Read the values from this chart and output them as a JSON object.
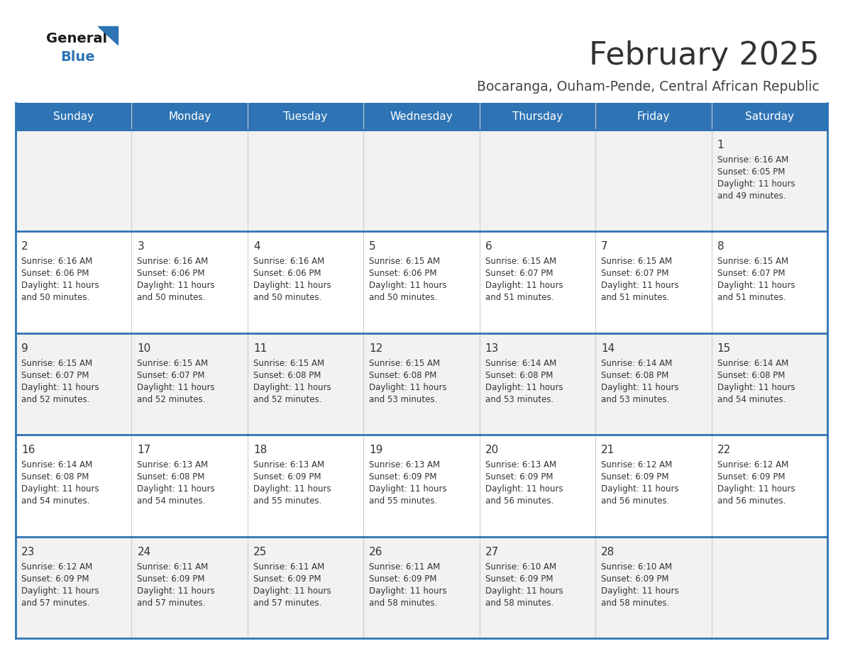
{
  "title": "February 2025",
  "subtitle": "Bocaranga, Ouham-Pende, Central African Republic",
  "header_bg_color": "#2E74B5",
  "header_text_color": "#FFFFFF",
  "cell_bg_even": "#F2F2F2",
  "cell_bg_odd": "#FFFFFF",
  "cell_text_color": "#333333",
  "day_number_color": "#333333",
  "border_color": "#2E74B5",
  "title_color": "#333333",
  "subtitle_color": "#444444",
  "weekdays": [
    "Sunday",
    "Monday",
    "Tuesday",
    "Wednesday",
    "Thursday",
    "Friday",
    "Saturday"
  ],
  "weeks": [
    [
      {
        "day": 0
      },
      {
        "day": 0
      },
      {
        "day": 0
      },
      {
        "day": 0
      },
      {
        "day": 0
      },
      {
        "day": 0
      },
      {
        "day": 1,
        "sunrise": "6:16 AM",
        "sunset": "6:05 PM",
        "daylight": "11 hours and 49 minutes."
      }
    ],
    [
      {
        "day": 2,
        "sunrise": "6:16 AM",
        "sunset": "6:06 PM",
        "daylight": "11 hours and 50 minutes."
      },
      {
        "day": 3,
        "sunrise": "6:16 AM",
        "sunset": "6:06 PM",
        "daylight": "11 hours and 50 minutes."
      },
      {
        "day": 4,
        "sunrise": "6:16 AM",
        "sunset": "6:06 PM",
        "daylight": "11 hours and 50 minutes."
      },
      {
        "day": 5,
        "sunrise": "6:15 AM",
        "sunset": "6:06 PM",
        "daylight": "11 hours and 50 minutes."
      },
      {
        "day": 6,
        "sunrise": "6:15 AM",
        "sunset": "6:07 PM",
        "daylight": "11 hours and 51 minutes."
      },
      {
        "day": 7,
        "sunrise": "6:15 AM",
        "sunset": "6:07 PM",
        "daylight": "11 hours and 51 minutes."
      },
      {
        "day": 8,
        "sunrise": "6:15 AM",
        "sunset": "6:07 PM",
        "daylight": "11 hours and 51 minutes."
      }
    ],
    [
      {
        "day": 9,
        "sunrise": "6:15 AM",
        "sunset": "6:07 PM",
        "daylight": "11 hours and 52 minutes."
      },
      {
        "day": 10,
        "sunrise": "6:15 AM",
        "sunset": "6:07 PM",
        "daylight": "11 hours and 52 minutes."
      },
      {
        "day": 11,
        "sunrise": "6:15 AM",
        "sunset": "6:08 PM",
        "daylight": "11 hours and 52 minutes."
      },
      {
        "day": 12,
        "sunrise": "6:15 AM",
        "sunset": "6:08 PM",
        "daylight": "11 hours and 53 minutes."
      },
      {
        "day": 13,
        "sunrise": "6:14 AM",
        "sunset": "6:08 PM",
        "daylight": "11 hours and 53 minutes."
      },
      {
        "day": 14,
        "sunrise": "6:14 AM",
        "sunset": "6:08 PM",
        "daylight": "11 hours and 53 minutes."
      },
      {
        "day": 15,
        "sunrise": "6:14 AM",
        "sunset": "6:08 PM",
        "daylight": "11 hours and 54 minutes."
      }
    ],
    [
      {
        "day": 16,
        "sunrise": "6:14 AM",
        "sunset": "6:08 PM",
        "daylight": "11 hours and 54 minutes."
      },
      {
        "day": 17,
        "sunrise": "6:13 AM",
        "sunset": "6:08 PM",
        "daylight": "11 hours and 54 minutes."
      },
      {
        "day": 18,
        "sunrise": "6:13 AM",
        "sunset": "6:09 PM",
        "daylight": "11 hours and 55 minutes."
      },
      {
        "day": 19,
        "sunrise": "6:13 AM",
        "sunset": "6:09 PM",
        "daylight": "11 hours and 55 minutes."
      },
      {
        "day": 20,
        "sunrise": "6:13 AM",
        "sunset": "6:09 PM",
        "daylight": "11 hours and 56 minutes."
      },
      {
        "day": 21,
        "sunrise": "6:12 AM",
        "sunset": "6:09 PM",
        "daylight": "11 hours and 56 minutes."
      },
      {
        "day": 22,
        "sunrise": "6:12 AM",
        "sunset": "6:09 PM",
        "daylight": "11 hours and 56 minutes."
      }
    ],
    [
      {
        "day": 23,
        "sunrise": "6:12 AM",
        "sunset": "6:09 PM",
        "daylight": "11 hours and 57 minutes."
      },
      {
        "day": 24,
        "sunrise": "6:11 AM",
        "sunset": "6:09 PM",
        "daylight": "11 hours and 57 minutes."
      },
      {
        "day": 25,
        "sunrise": "6:11 AM",
        "sunset": "6:09 PM",
        "daylight": "11 hours and 57 minutes."
      },
      {
        "day": 26,
        "sunrise": "6:11 AM",
        "sunset": "6:09 PM",
        "daylight": "11 hours and 58 minutes."
      },
      {
        "day": 27,
        "sunrise": "6:10 AM",
        "sunset": "6:09 PM",
        "daylight": "11 hours and 58 minutes."
      },
      {
        "day": 28,
        "sunrise": "6:10 AM",
        "sunset": "6:09 PM",
        "daylight": "11 hours and 58 minutes."
      },
      {
        "day": 0
      }
    ]
  ]
}
